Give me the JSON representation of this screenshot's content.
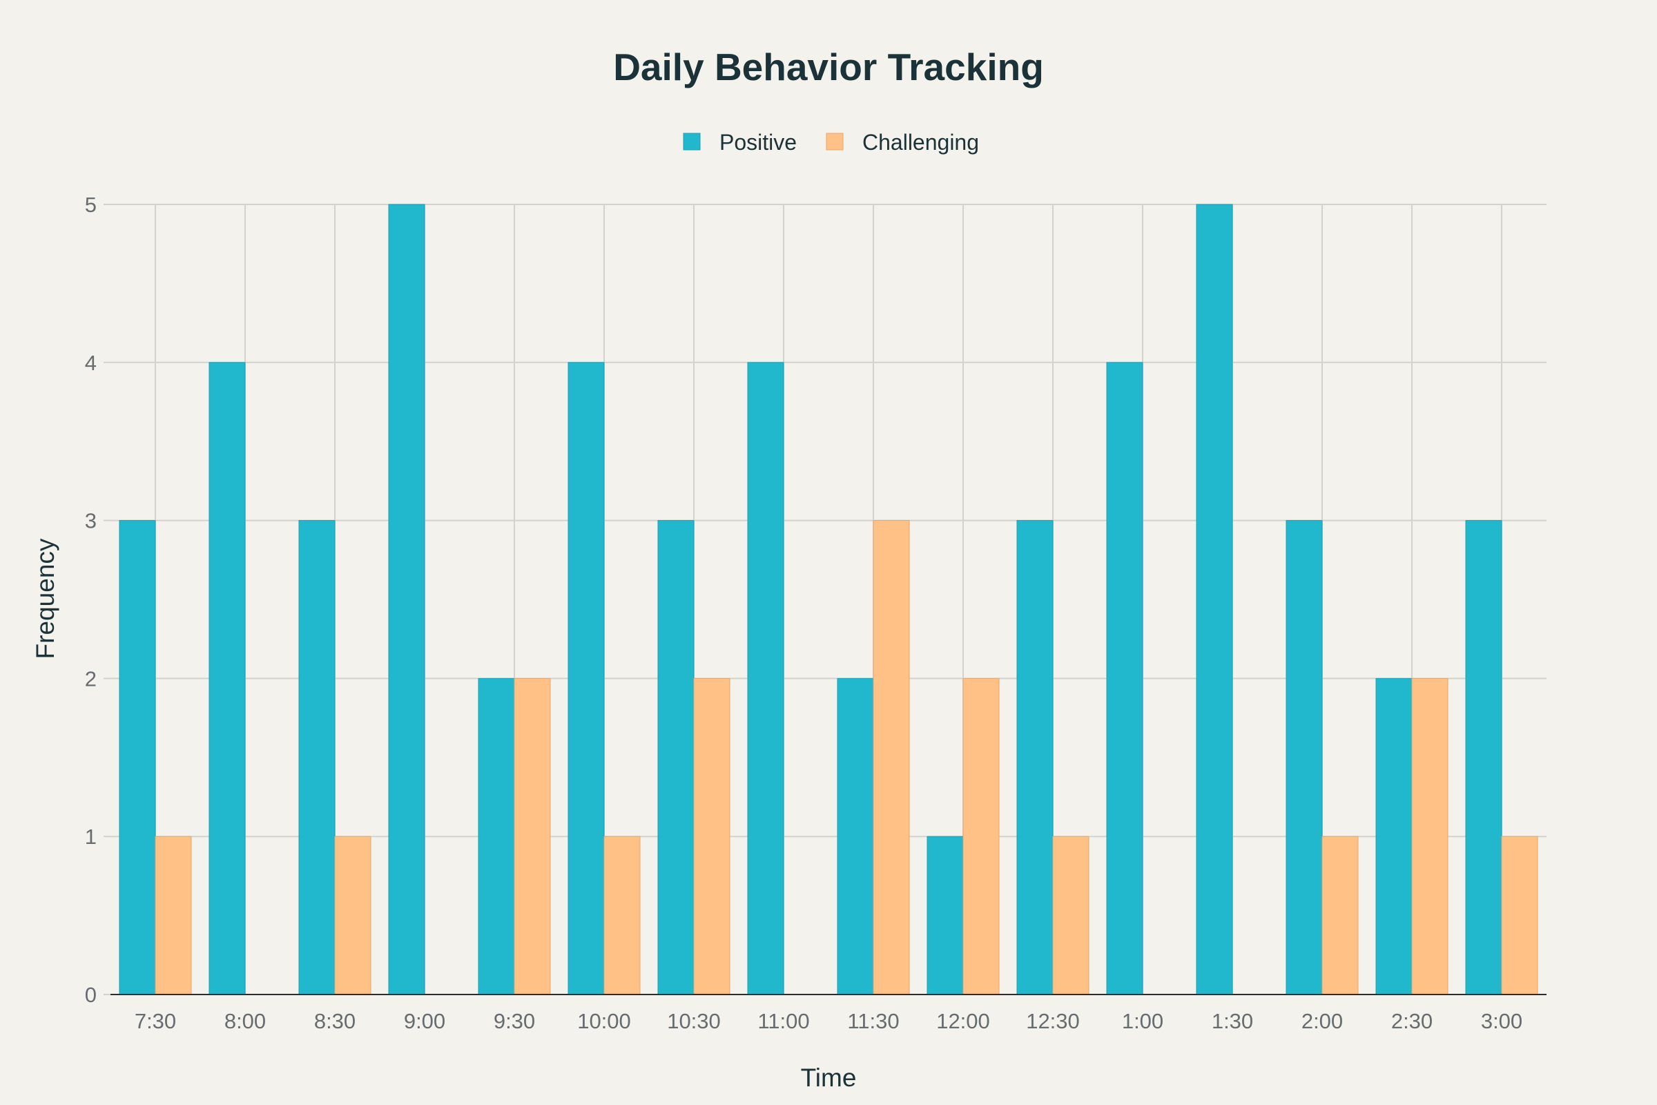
{
  "chart_data": {
    "type": "bar",
    "title": "Daily Behavior Tracking",
    "xlabel": "Time",
    "ylabel": "Frequency",
    "categories": [
      "7:30",
      "8:00",
      "8:30",
      "9:00",
      "9:30",
      "10:00",
      "10:30",
      "11:00",
      "11:30",
      "12:00",
      "12:30",
      "1:00",
      "1:30",
      "2:00",
      "2:30",
      "3:00"
    ],
    "series": [
      {
        "name": "Positive",
        "color": "#21b7cc",
        "values": [
          3,
          4,
          3,
          5,
          2,
          4,
          3,
          4,
          2,
          1,
          3,
          4,
          5,
          3,
          2,
          3
        ]
      },
      {
        "name": "Challenging",
        "color": "#ffc185",
        "values": [
          1,
          0,
          1,
          0,
          2,
          1,
          2,
          0,
          3,
          2,
          1,
          0,
          0,
          1,
          2,
          1
        ]
      }
    ],
    "ylim": [
      0,
      5
    ],
    "yticks": [
      0,
      1,
      2,
      3,
      4,
      5
    ],
    "grid": true,
    "legend_position": "top-center",
    "background": "#f3f2ec"
  }
}
